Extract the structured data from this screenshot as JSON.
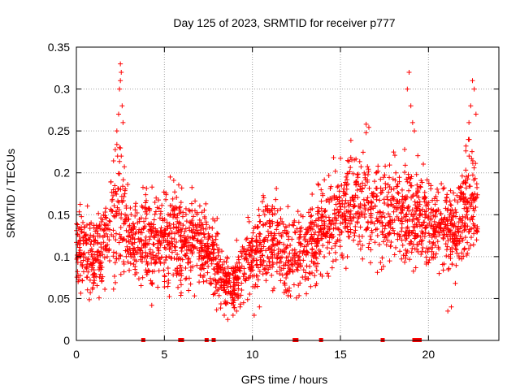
{
  "chart_data": {
    "type": "scatter",
    "title": "Day 125 of 2023, SRMTID for receiver p777",
    "xlabel": "GPS time / hours",
    "ylabel": "SRMTID / TECUs",
    "xlim": [
      0,
      24
    ],
    "ylim": [
      0,
      0.35
    ],
    "xticks": [
      0,
      5,
      10,
      15,
      20
    ],
    "yticks": [
      0,
      0.05,
      0.1,
      0.15,
      0.2,
      0.25,
      0.3,
      0.35
    ],
    "xtick_labels": [
      "0",
      "5",
      "10",
      "15",
      "20"
    ],
    "ytick_labels": [
      "0",
      "0.05",
      "0.1",
      "0.15",
      "0.2",
      "0.25",
      "0.3",
      "0.35"
    ],
    "grid": true,
    "marker": "+",
    "color": "#ff0000",
    "point_count_estimate": 2600,
    "trend": {
      "x": [
        0,
        0.5,
        1,
        1.5,
        2,
        2.5,
        3,
        3.5,
        4,
        4.5,
        5,
        5.5,
        6,
        6.5,
        7,
        7.5,
        8,
        8.5,
        9,
        9.5,
        10,
        10.5,
        11,
        11.5,
        12,
        12.5,
        13,
        13.5,
        14,
        14.5,
        15,
        15.5,
        16,
        16.5,
        17,
        17.5,
        18,
        18.5,
        19,
        19.5,
        20,
        20.5,
        21,
        21.5,
        22,
        22.5,
        22.8
      ],
      "y": [
        0.12,
        0.1,
        0.1,
        0.11,
        0.14,
        0.16,
        0.12,
        0.11,
        0.12,
        0.11,
        0.12,
        0.13,
        0.12,
        0.11,
        0.12,
        0.11,
        0.09,
        0.07,
        0.07,
        0.09,
        0.1,
        0.11,
        0.12,
        0.11,
        0.1,
        0.1,
        0.11,
        0.12,
        0.14,
        0.14,
        0.15,
        0.16,
        0.16,
        0.17,
        0.16,
        0.15,
        0.16,
        0.15,
        0.15,
        0.15,
        0.14,
        0.14,
        0.14,
        0.13,
        0.16,
        0.16,
        0.16
      ],
      "spread": [
        0.03,
        0.035,
        0.035,
        0.035,
        0.05,
        0.06,
        0.035,
        0.035,
        0.04,
        0.04,
        0.04,
        0.04,
        0.04,
        0.035,
        0.035,
        0.03,
        0.03,
        0.025,
        0.025,
        0.03,
        0.03,
        0.035,
        0.035,
        0.035,
        0.035,
        0.035,
        0.035,
        0.04,
        0.04,
        0.04,
        0.04,
        0.04,
        0.04,
        0.045,
        0.045,
        0.04,
        0.04,
        0.04,
        0.045,
        0.04,
        0.04,
        0.035,
        0.035,
        0.035,
        0.05,
        0.05,
        0.04
      ]
    },
    "highlights": [
      {
        "x": [
          2.3,
          2.4,
          2.45,
          2.5,
          2.55,
          2.6,
          2.65,
          2.5,
          2.45,
          2.55
        ],
        "y": [
          0.25,
          0.27,
          0.3,
          0.33,
          0.32,
          0.28,
          0.26,
          0.31,
          0.23,
          0.22
        ]
      },
      {
        "x": [
          18.8,
          18.9,
          19.0,
          19.1,
          19.2,
          22.3,
          22.4,
          22.5,
          22.6,
          22.7
        ],
        "y": [
          0.3,
          0.32,
          0.28,
          0.26,
          0.25,
          0.26,
          0.28,
          0.31,
          0.3,
          0.27
        ]
      },
      {
        "x": [
          8.4,
          8.6,
          8.9,
          9.1,
          9.3,
          9.5,
          10.1,
          10.4,
          21.1,
          21.3
        ],
        "y": [
          0.03,
          0.025,
          0.03,
          0.035,
          0.04,
          0.045,
          0.03,
          0.04,
          0.035,
          0.04
        ]
      }
    ],
    "zero_markers_x": [
      3.8,
      5.9,
      6.0,
      7.4,
      7.8,
      12.4,
      12.5,
      13.9,
      17.4,
      19.2,
      19.3,
      19.4,
      19.5
    ]
  }
}
